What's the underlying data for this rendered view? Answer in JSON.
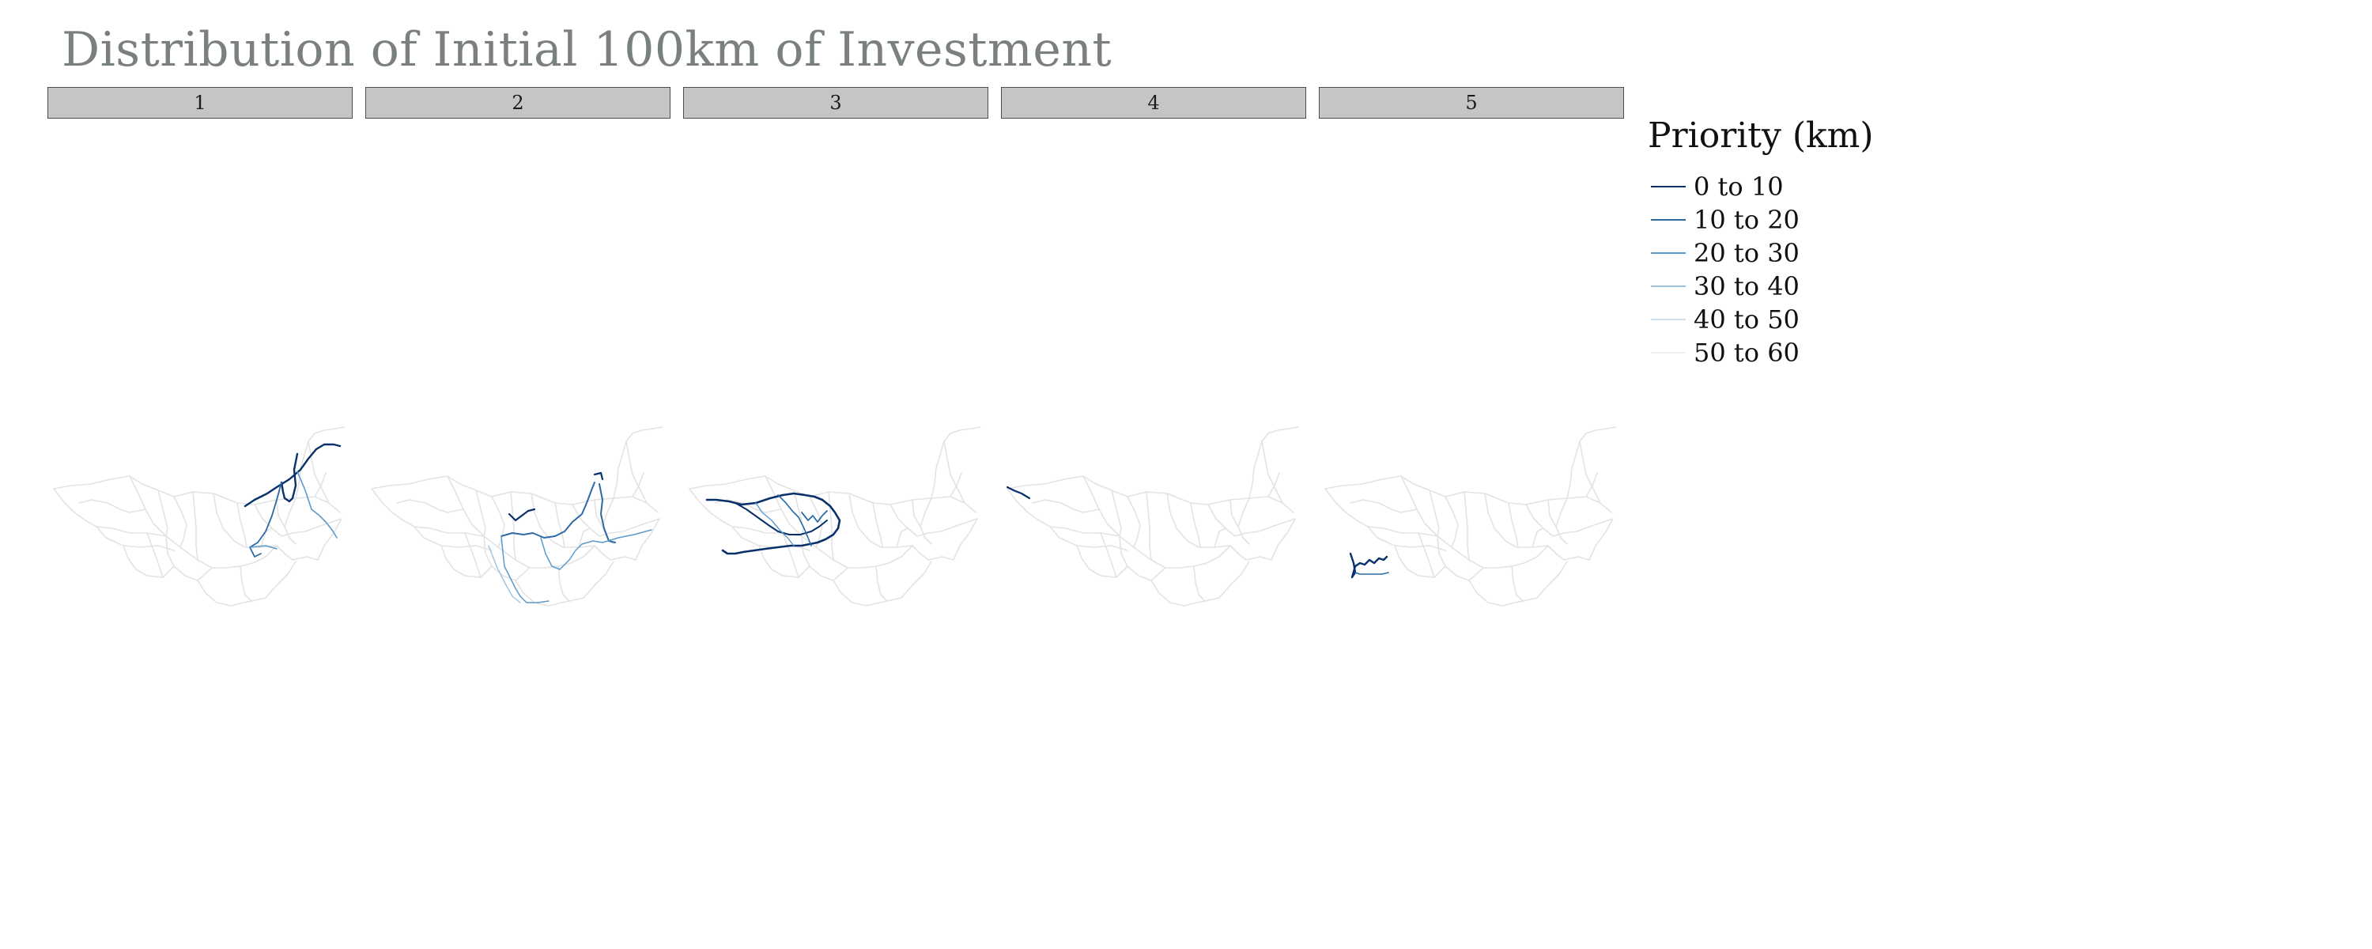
{
  "title": "Distribution of Initial 100km of Investment",
  "panels": [
    {
      "label": "1"
    },
    {
      "label": "2"
    },
    {
      "label": "3"
    },
    {
      "label": "4"
    },
    {
      "label": "5"
    }
  ],
  "legend": {
    "title": "Priority (km)",
    "items": [
      {
        "label": "0 to 10",
        "color": "#08306b"
      },
      {
        "label": "10 to 20",
        "color": "#2b6aa6"
      },
      {
        "label": "20 to 30",
        "color": "#5b9acb"
      },
      {
        "label": "30 to 40",
        "color": "#9cc4e0"
      },
      {
        "label": "40 to 50",
        "color": "#cfe1ee"
      },
      {
        "label": "50 to 60",
        "color": "#ecf3f8"
      }
    ]
  },
  "colors": {
    "base_network": "#e3e3e3",
    "strip_fill": "#c5c5c5",
    "title_text": "#7a7f7f"
  }
}
